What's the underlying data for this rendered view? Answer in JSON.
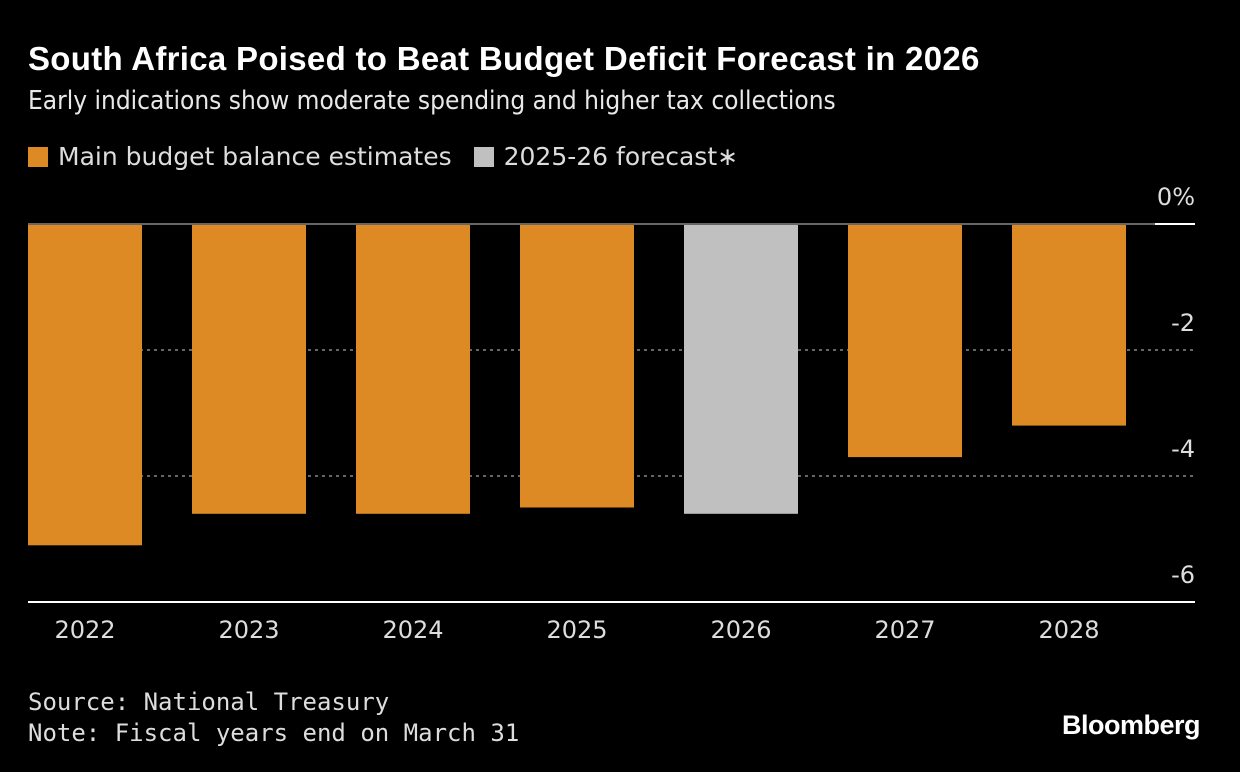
{
  "title": "South Africa Poised to Beat Budget Deficit Forecast in 2026",
  "subtitle": "Early indications show moderate spending and higher tax collections",
  "source": "Source: National Treasury",
  "note": "Note: Fiscal years end on March 31",
  "logo": "Bloomberg",
  "chart_data": {
    "type": "bar",
    "title": "South Africa Poised to Beat Budget Deficit Forecast in 2026",
    "categories": [
      "2022",
      "2023",
      "2024",
      "2025",
      "2026",
      "2027",
      "2028"
    ],
    "series": [
      {
        "name": "Main budget balance estimates",
        "color": "#dd8a24",
        "values": [
          -5.1,
          -4.6,
          -4.6,
          -4.5,
          null,
          -3.7,
          -3.2
        ]
      },
      {
        "name": "2025-26 forecast∗",
        "color": "#c0c0c0",
        "values": [
          null,
          null,
          null,
          null,
          -4.6,
          null,
          null
        ]
      }
    ],
    "yticks": [
      "0%",
      "-2",
      "-4",
      "-6"
    ],
    "ytick_values": [
      0,
      -2,
      -4,
      -6
    ],
    "ylim": [
      -6,
      0
    ],
    "grid": true,
    "legend": "top-left",
    "xlabel": "",
    "ylabel": ""
  }
}
